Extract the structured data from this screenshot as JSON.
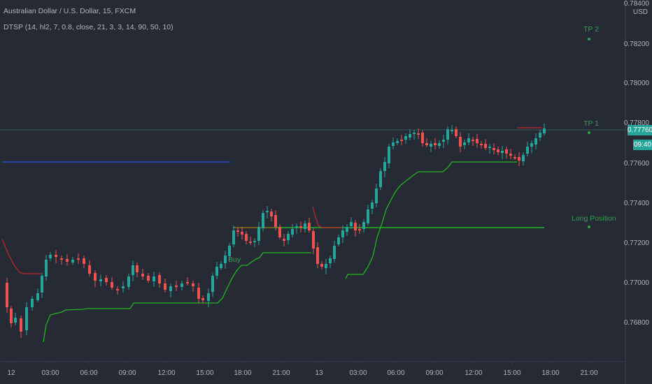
{
  "header": {
    "title": "Australian Dollar / U.S. Dollar, 15, FXCM",
    "indicator": "DTSP (14, hl2, 7, 0.8, close, 21, 3, 3, 14, 90, 50, 10)"
  },
  "price_axis": {
    "currency": "USD",
    "labels": [
      "0.78400",
      "0.78200",
      "0.78000",
      "0.77800",
      "0.77600",
      "0.77400",
      "0.77200",
      "0.77000",
      "0.76800"
    ],
    "current_price": "0.77760",
    "countdown": "09:40"
  },
  "time_axis": {
    "labels": [
      "12",
      "03:00",
      "06:00",
      "09:00",
      "12:00",
      "15:00",
      "18:00",
      "21:00",
      "13",
      "03:00",
      "06:00",
      "09:00",
      "12:00",
      "15:00",
      "18:00",
      "21:00"
    ]
  },
  "annotations": {
    "tp2": "TP 2",
    "tp1": "TP 1",
    "long_position": "Long Position",
    "buy": "Buy"
  },
  "colors": {
    "background": "#262a35",
    "up": "#26a69a",
    "down": "#ef5350",
    "trail": "#22b51f",
    "blue_line": "#2a49c9",
    "red_trail": "#c3262a",
    "tp_line": "#2d5a56"
  }
}
